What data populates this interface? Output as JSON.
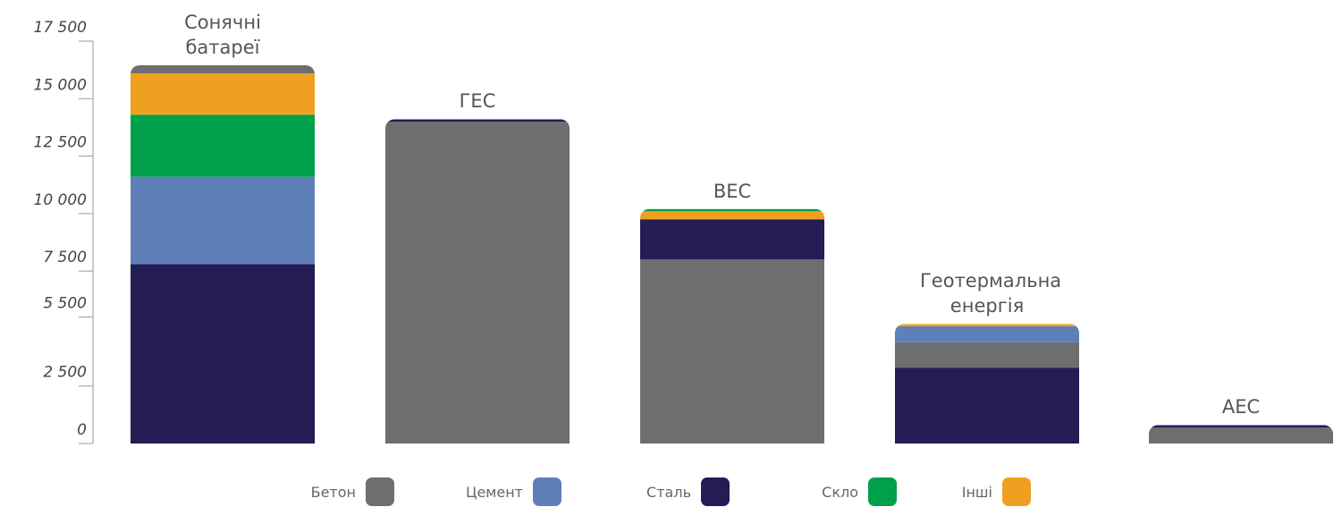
{
  "chart_data": {
    "type": "stacked-bar",
    "categories": [
      "Сонячні батареї",
      "ГЕС",
      "ВЕС",
      "Геотермальна енергія",
      "АЕС"
    ],
    "series": [
      {
        "name": "Бетон",
        "color": "#6d6e70",
        "values": [
          350,
          14000,
          8000,
          1100,
          700
        ]
      },
      {
        "name": "Цемент",
        "color": "#5f7fb8",
        "values": [
          3800,
          0,
          0,
          700,
          0
        ]
      },
      {
        "name": "Сталь",
        "color": "#231c55",
        "values": [
          7800,
          100,
          1750,
          3300,
          100
        ]
      },
      {
        "name": "Скло",
        "color": "#00a04a",
        "values": [
          2700,
          0,
          100,
          0,
          0
        ]
      },
      {
        "name": "Інші",
        "color": "#efa021",
        "values": [
          1800,
          0,
          350,
          100,
          0
        ]
      }
    ],
    "ylim": [
      0,
      17500
    ],
    "yticks": [
      0,
      {
        "value": 2500,
        "label": "2 500"
      },
      {
        "value": 5500,
        "label": "5 500"
      },
      {
        "value": 7500,
        "label": "7 500"
      },
      {
        "value": 10000,
        "label": "10 000"
      },
      {
        "value": 12500,
        "label": "12 500"
      },
      {
        "value": 15000,
        "label": "15 000"
      },
      {
        "value": 17500,
        "label": "17 500"
      }
    ]
  }
}
